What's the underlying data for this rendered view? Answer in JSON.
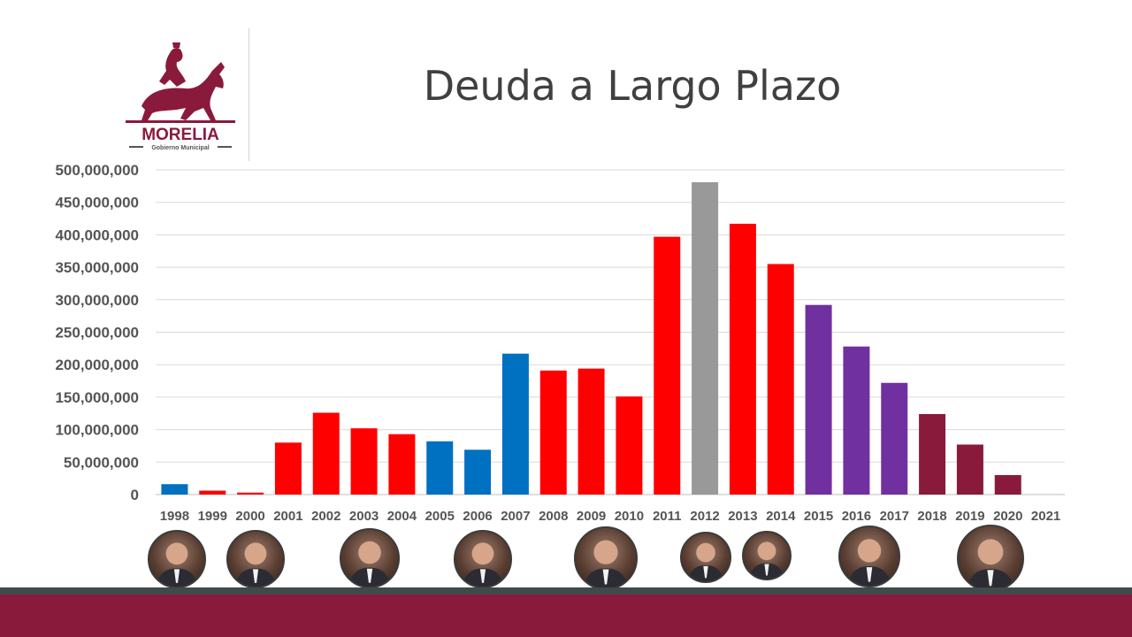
{
  "logo": {
    "name": "MORELIA",
    "subtitle": "Gobierno Municipal"
  },
  "title": "Deuda a Largo Plazo",
  "colors": {
    "blue": "#0070c0",
    "red": "#ff0000",
    "gray": "#999999",
    "purple": "#7030a0",
    "maroon": "#8a1a3c"
  },
  "chart_data": {
    "type": "bar",
    "title": "Deuda a Largo Plazo",
    "xlabel": "",
    "ylabel": "",
    "ylim": [
      0,
      500000000
    ],
    "yticks": [
      "0",
      "50,000,000",
      "100,000,000",
      "150,000,000",
      "200,000,000",
      "250,000,000",
      "300,000,000",
      "350,000,000",
      "400,000,000",
      "450,000,000",
      "500,000,000"
    ],
    "grid": true,
    "legend": "none",
    "categories": [
      "1998",
      "1999",
      "2000",
      "2001",
      "2002",
      "2003",
      "2004",
      "2005",
      "2006",
      "2007",
      "2008",
      "2009",
      "2010",
      "2011",
      "2012",
      "2013",
      "2014",
      "2015",
      "2016",
      "2017",
      "2018",
      "2019",
      "2020",
      "2021"
    ],
    "values": [
      16000000,
      6000000,
      3000000,
      80000000,
      126000000,
      102000000,
      93000000,
      82000000,
      69000000,
      217000000,
      191000000,
      194000000,
      151000000,
      397000000,
      481000000,
      417000000,
      355000000,
      292000000,
      228000000,
      172000000,
      124000000,
      77000000,
      30000000,
      0
    ],
    "bar_colors": [
      "#0070c0",
      "#ff0000",
      "#ff0000",
      "#ff0000",
      "#ff0000",
      "#ff0000",
      "#ff0000",
      "#0070c0",
      "#0070c0",
      "#0070c0",
      "#ff0000",
      "#ff0000",
      "#ff0000",
      "#ff0000",
      "#999999",
      "#ff0000",
      "#ff0000",
      "#7030a0",
      "#7030a0",
      "#7030a0",
      "#8a1a3c",
      "#8a1a3c",
      "#8a1a3c",
      "#8a1a3c"
    ]
  },
  "portraits": [
    {
      "icon": "mayor-portrait-icon"
    },
    {
      "icon": "mayor-portrait-icon"
    },
    {
      "icon": "mayor-portrait-icon"
    },
    {
      "icon": "mayor-portrait-icon"
    },
    {
      "icon": "mayor-portrait-icon"
    },
    {
      "icon": "mayor-portrait-icon"
    },
    {
      "icon": "mayor-portrait-icon"
    },
    {
      "icon": "mayor-portrait-icon"
    },
    {
      "icon": "mayor-portrait-icon"
    }
  ]
}
